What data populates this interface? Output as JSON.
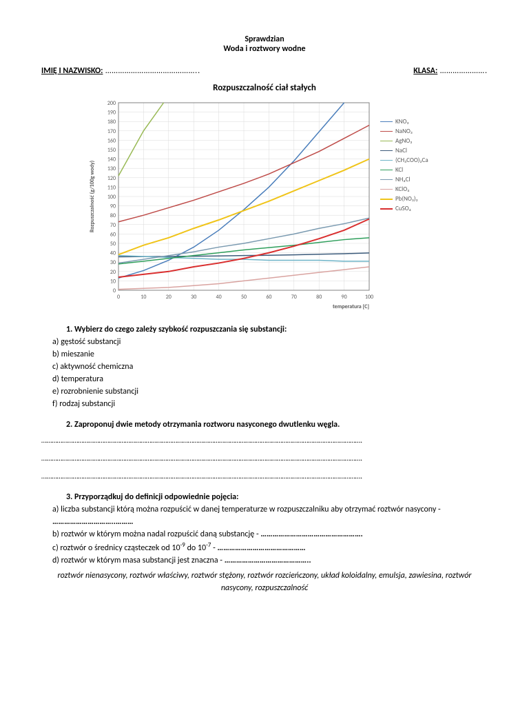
{
  "title1": "Sprawdzian",
  "title2": "Woda i roztwory wodne",
  "name_label": "IMIĘ I NAZWISKO:",
  "name_dots": " ……………………………………..",
  "class_label": "KLASA:",
  "class_dots": " ………………….",
  "chart": {
    "title": "Rozpuszczalność ciał stałych",
    "ylabel": "Rozpuszczalność (g/100g wody)",
    "xlabel": "temperatura [C]",
    "xmin": 0,
    "xmax": 100,
    "xstep": 10,
    "ymin": 0,
    "ymax": 200,
    "ystep": 10,
    "grid_color": "#d9d9d9",
    "axis_color": "#808080",
    "text_color": "#595959",
    "series": [
      {
        "name": "KNO₃",
        "color": "#4a7ebb",
        "w": 1.5,
        "points": [
          [
            0,
            13
          ],
          [
            10,
            21
          ],
          [
            20,
            32
          ],
          [
            30,
            46
          ],
          [
            40,
            64
          ],
          [
            50,
            86
          ],
          [
            60,
            110
          ],
          [
            70,
            138
          ],
          [
            80,
            169
          ],
          [
            90,
            200
          ]
        ]
      },
      {
        "name": "NaNO₃",
        "color": "#be4b48",
        "w": 1.5,
        "points": [
          [
            0,
            73
          ],
          [
            10,
            80
          ],
          [
            20,
            88
          ],
          [
            30,
            96
          ],
          [
            40,
            105
          ],
          [
            50,
            114
          ],
          [
            60,
            124
          ],
          [
            70,
            136
          ],
          [
            80,
            148
          ],
          [
            90,
            162
          ],
          [
            100,
            176
          ]
        ]
      },
      {
        "name": "AgNO₃",
        "color": "#98b954",
        "w": 1.5,
        "points": [
          [
            0,
            122
          ],
          [
            10,
            170
          ],
          [
            18,
            200
          ]
        ]
      },
      {
        "name": "NaCl",
        "color": "#3b5a7a",
        "w": 1.5,
        "points": [
          [
            0,
            35.7
          ],
          [
            10,
            35.9
          ],
          [
            20,
            36
          ],
          [
            30,
            36.3
          ],
          [
            40,
            36.6
          ],
          [
            50,
            37
          ],
          [
            60,
            37.3
          ],
          [
            70,
            37.8
          ],
          [
            80,
            38.4
          ],
          [
            90,
            39
          ],
          [
            100,
            39.8
          ]
        ]
      },
      {
        "name": "(CH₃COO)₂Ca",
        "color": "#6eb4c8",
        "w": 1.5,
        "points": [
          [
            0,
            37
          ],
          [
            10,
            36
          ],
          [
            20,
            35
          ],
          [
            30,
            34
          ],
          [
            40,
            33
          ],
          [
            50,
            33
          ],
          [
            60,
            32
          ],
          [
            70,
            32
          ],
          [
            80,
            32
          ],
          [
            90,
            31
          ],
          [
            100,
            31
          ]
        ]
      },
      {
        "name": "KCl",
        "color": "#2e9e5b",
        "w": 1.5,
        "points": [
          [
            0,
            28
          ],
          [
            10,
            31
          ],
          [
            20,
            34
          ],
          [
            30,
            37
          ],
          [
            40,
            40
          ],
          [
            50,
            43
          ],
          [
            60,
            45.5
          ],
          [
            70,
            48
          ],
          [
            80,
            51
          ],
          [
            90,
            54
          ],
          [
            100,
            56
          ]
        ]
      },
      {
        "name": "NH₄Cl",
        "color": "#7a9ab0",
        "w": 1.5,
        "points": [
          [
            0,
            29
          ],
          [
            10,
            33
          ],
          [
            20,
            37
          ],
          [
            30,
            41
          ],
          [
            40,
            46
          ],
          [
            50,
            50
          ],
          [
            60,
            55
          ],
          [
            70,
            60
          ],
          [
            80,
            66
          ],
          [
            90,
            71
          ],
          [
            100,
            77
          ]
        ]
      },
      {
        "name": "KClO₄",
        "color": "#d9a3a0",
        "w": 1.5,
        "points": [
          [
            0,
            1
          ],
          [
            10,
            2
          ],
          [
            20,
            3
          ],
          [
            30,
            5
          ],
          [
            40,
            7
          ],
          [
            50,
            10
          ],
          [
            60,
            13
          ],
          [
            70,
            16
          ],
          [
            80,
            19
          ],
          [
            90,
            22
          ],
          [
            100,
            25
          ]
        ]
      },
      {
        "name": "Pb(NO₃)₂",
        "color": "#f0c419",
        "w": 2,
        "points": [
          [
            0,
            38
          ],
          [
            10,
            48
          ],
          [
            20,
            56
          ],
          [
            30,
            66
          ],
          [
            40,
            75
          ],
          [
            50,
            85
          ],
          [
            60,
            95
          ],
          [
            70,
            106
          ],
          [
            80,
            117
          ],
          [
            90,
            128
          ],
          [
            100,
            140
          ]
        ]
      },
      {
        "name": "CuSO₄",
        "color": "#d92e2e",
        "w": 2,
        "points": [
          [
            0,
            14
          ],
          [
            10,
            17
          ],
          [
            20,
            20
          ],
          [
            30,
            25
          ],
          [
            40,
            29
          ],
          [
            50,
            34
          ],
          [
            60,
            40
          ],
          [
            70,
            47
          ],
          [
            80,
            55
          ],
          [
            90,
            64
          ],
          [
            100,
            76
          ]
        ]
      }
    ]
  },
  "q1": {
    "num": "1.",
    "text": "Wybierz do czego zależy szybkość rozpuszczania się substancji:",
    "opts": [
      "a)  gęstość substancji",
      "b)  mieszanie",
      "c)  aktywność chemiczna",
      "d)  temperatura",
      "e)  rozrobnienie substancji",
      "f)  rodzaj substancji"
    ]
  },
  "q2": {
    "num": "2.",
    "text": "Zaproponuj dwie metody otrzymania roztworu nasyconego dwutlenku węgla."
  },
  "q3": {
    "num": "3.",
    "text": "Przyporządkuj do definicji odpowiednie pojęcia:",
    "a_pre": "a)  liczba substancji którą można rozpuścić w danej temperaturze w rozpuszczalniku aby otrzymać roztwór nasycony - ",
    "a_dots": "…………………………..………",
    "b_pre": "b)  roztwór w którym można nadal rozpuścić daną substancję - ",
    "b_dots": "…………………………………………….",
    "c_pre": "c)  roztwór o średnicy cząsteczek od 10",
    "c_mid": " do 10",
    "c_post": " - ",
    "c_dots": "………………………………………",
    "d_pre": "d)  roztwór w którym masa substancji jest znaczna - ",
    "d_dots": "……………………………………..",
    "terms": "roztwór nienasycony, roztwór właściwy, roztwór stężony, roztwór rozcieńczony, układ koloidalny, emulsja, zawiesina, roztwór nasycony, rozpuszczalność"
  },
  "long_dots": "…………………………………………………………………………………………………………………………………………………………………."
}
